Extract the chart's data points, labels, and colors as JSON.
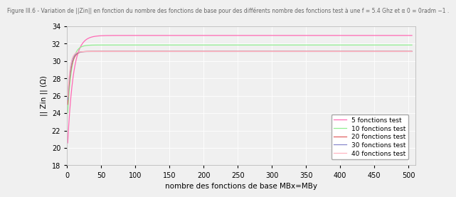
{
  "title": "Figure III.6 - Variation de ||Zin|| en fonction du nombre des fonctions de base pour des différents nombre des fonctions test à une f = 5.4 Ghz et α 0 = 0radm −1 .",
  "xlabel": "nombre des fonctions de base MBx=MBy",
  "ylabel": "|| Zin || (Ω)",
  "xlim": [
    0,
    510
  ],
  "ylim": [
    18,
    34
  ],
  "xticks": [
    0,
    50,
    100,
    150,
    200,
    250,
    300,
    350,
    400,
    450,
    500
  ],
  "yticks": [
    18,
    20,
    22,
    24,
    26,
    28,
    30,
    32,
    34
  ],
  "series": [
    {
      "label": "5 fonctions test",
      "color": "#FF69B4",
      "start_val": 19.0,
      "converge_val": 32.95,
      "rate": 0.12
    },
    {
      "label": "10 fonctions test",
      "color": "#90EE90",
      "start_val": 22.5,
      "converge_val": 31.85,
      "rate": 0.18
    },
    {
      "label": "20 fonctions test",
      "color": "#E06060",
      "start_val": 23.5,
      "converge_val": 31.12,
      "rate": 0.22
    },
    {
      "label": "30 fonctions test",
      "color": "#8888CC",
      "start_val": 24.0,
      "converge_val": 31.1,
      "rate": 0.25
    },
    {
      "label": "40 fonctions test",
      "color": "#FFB6C1",
      "start_val": 24.2,
      "converge_val": 31.1,
      "rate": 0.28
    }
  ],
  "background_color": "#f0f0f0",
  "plot_bg_color": "#f0f0f0",
  "title_fontsize": 5.5,
  "axis_fontsize": 7.5,
  "tick_fontsize": 7,
  "legend_fontsize": 6.5
}
